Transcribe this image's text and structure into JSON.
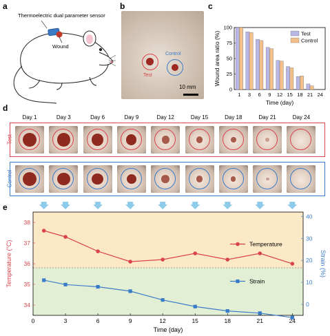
{
  "panel_a": {
    "letter": "a",
    "sensor_label": "Thermoelectric dual parameter sensor",
    "wound_label": "Wound"
  },
  "panel_b": {
    "letter": "b",
    "test_label": "Test",
    "control_label": "Control",
    "scale_label": "10 mm"
  },
  "panel_c": {
    "letter": "c"
  },
  "panel_d": {
    "letter": "d",
    "days": [
      "Day 1",
      "Day 3",
      "Day 6",
      "Day 9",
      "Day 12",
      "Day 15",
      "Day 18",
      "Day 21",
      "Day 24"
    ],
    "test_row_label": "Test",
    "control_row_label": "Control",
    "test_wound_sizes": [
      1.0,
      0.95,
      0.82,
      0.7,
      0.45,
      0.35,
      0.22,
      0.08,
      0.0
    ],
    "control_wound_sizes": [
      1.0,
      0.93,
      0.78,
      0.67,
      0.47,
      0.37,
      0.2,
      0.06,
      0.0
    ]
  },
  "panel_e": {
    "letter": "e"
  },
  "colors": {
    "test": "#d9434b",
    "control": "#3a7bc8",
    "test_bar": "#b9b7e6",
    "control_bar": "#f3c08c",
    "temp_bg": "#fbe8c6",
    "strain_bg": "#e3efd5",
    "arrow": "#8ecbea"
  },
  "chart_data": [
    {
      "type": "bar",
      "xlabel": "Time (day)",
      "ylabel": "Wound area ratio (%)",
      "ylim": [
        0,
        100
      ],
      "yticks": [
        0,
        25,
        50,
        75,
        100
      ],
      "categories": [
        "1",
        "3",
        "6",
        "9",
        "12",
        "15",
        "18",
        "21",
        "24"
      ],
      "series": [
        {
          "name": "Test",
          "values": [
            100,
            93,
            81,
            68,
            47,
            37,
            21,
            9,
            0
          ]
        },
        {
          "name": "Control",
          "values": [
            100,
            92,
            79,
            66,
            46,
            35,
            22,
            6,
            0
          ]
        }
      ],
      "legend": "top-right"
    },
    {
      "type": "line",
      "xlabel": "Time (day)",
      "ylabel_left": "Temperature (°C)",
      "ylabel_right": "Strain (%)",
      "x": [
        1,
        3,
        6,
        9,
        12,
        15,
        18,
        21,
        24
      ],
      "xlim": [
        0,
        25
      ],
      "xticks": [
        0,
        3,
        6,
        9,
        12,
        15,
        18,
        21,
        24
      ],
      "ylim_left": [
        33.5,
        38.5
      ],
      "yticks_left": [
        34,
        35,
        36,
        37,
        38
      ],
      "ylim_right": [
        -5,
        42
      ],
      "yticks_right": [
        0,
        10,
        20,
        30,
        40
      ],
      "series": [
        {
          "name": "Temperature",
          "axis": "left",
          "marker": "circle",
          "values": [
            37.6,
            37.3,
            36.6,
            36.1,
            36.2,
            36.5,
            36.2,
            36.5,
            36.0
          ]
        },
        {
          "name": "Strain",
          "axis": "right",
          "marker": "square",
          "values": [
            11,
            9,
            8,
            6,
            2,
            -1,
            -3,
            -4,
            -6
          ]
        }
      ],
      "threshold": 35.8,
      "legend": "right"
    }
  ]
}
